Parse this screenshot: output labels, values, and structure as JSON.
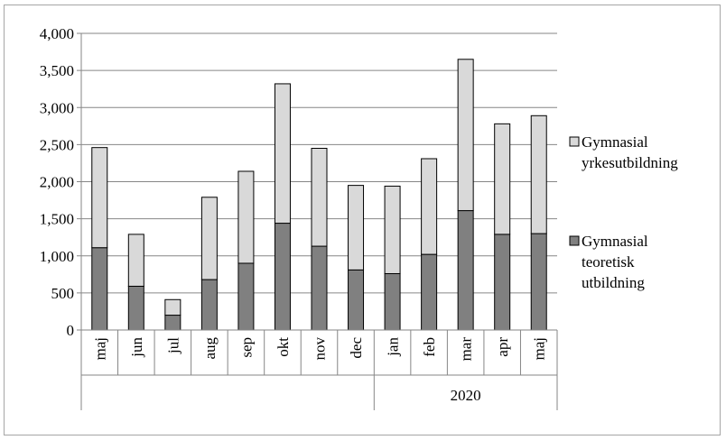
{
  "chart_data": {
    "type": "bar",
    "stacked": true,
    "categories": [
      "maj",
      "jun",
      "jul",
      "aug",
      "sep",
      "okt",
      "nov",
      "dec",
      "jan",
      "feb",
      "mar",
      "apr",
      "maj"
    ],
    "category_groups": [
      {
        "label": "",
        "start": 0,
        "end": 7
      },
      {
        "label": "2020",
        "start": 8,
        "end": 12
      }
    ],
    "series": [
      {
        "name": "Gymnasial teoretisk utbildning",
        "color": "#808080",
        "values": [
          1110,
          590,
          200,
          680,
          900,
          1440,
          1130,
          810,
          760,
          1020,
          1610,
          1290,
          1300
        ]
      },
      {
        "name": "Gymnasial yrkesutbildning",
        "color": "#d9d9d9",
        "values": [
          1350,
          700,
          210,
          1110,
          1240,
          1880,
          1320,
          1140,
          1180,
          1290,
          2040,
          1490,
          1590
        ]
      }
    ],
    "y_ticks": [
      "0",
      "500",
      "1,000",
      "1,500",
      "2,000",
      "2,500",
      "3,000",
      "3,500",
      "4,000"
    ],
    "ylim": [
      0,
      4000
    ],
    "grid": true,
    "legend_position": "right",
    "legend": [
      {
        "lines": [
          "Gymnasial",
          "yrkesutbildning"
        ],
        "color": "#d9d9d9"
      },
      {
        "lines": [
          "Gymnasial",
          "teoretisk",
          "utbildning"
        ],
        "color": "#808080"
      }
    ]
  }
}
